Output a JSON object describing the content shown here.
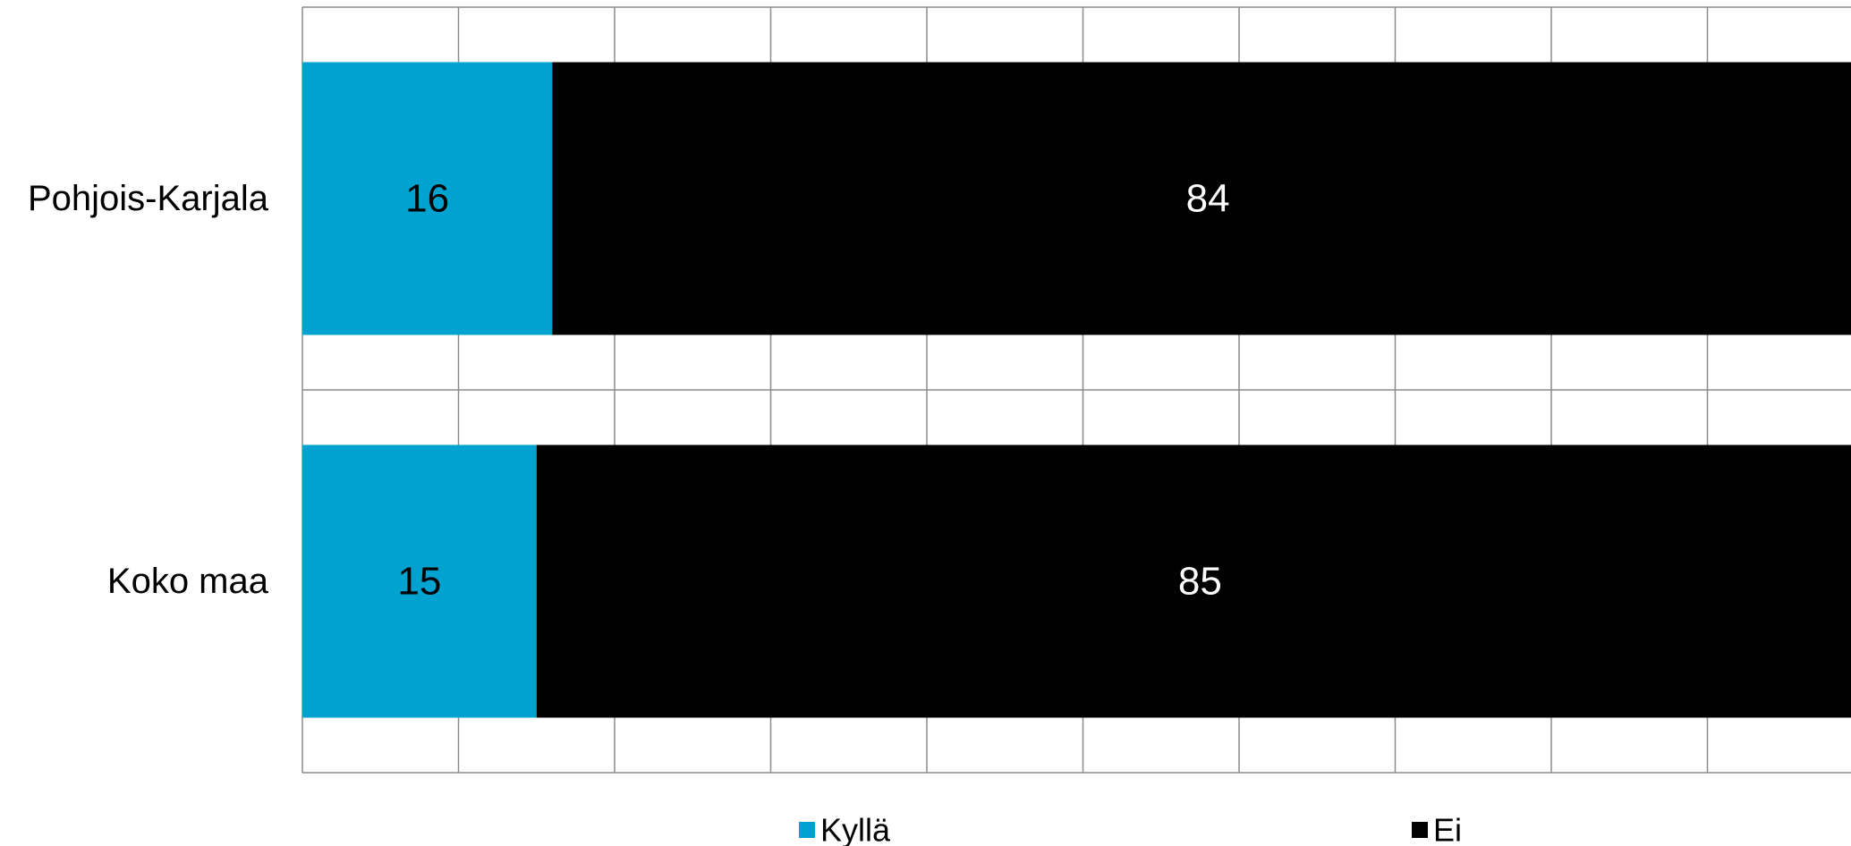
{
  "chart_data": {
    "type": "bar",
    "orientation": "horizontal",
    "stacked": true,
    "title": "",
    "xlabel": "",
    "ylabel": "",
    "xlim": [
      0,
      100
    ],
    "grid": true,
    "legend_position": "bottom",
    "categories": [
      "Pohjois-Karjala",
      "Koko maa"
    ],
    "series": [
      {
        "name": "Kyllä",
        "values": [
          16,
          15
        ],
        "color": "#00a3d0"
      },
      {
        "name": "Ei",
        "values": [
          84,
          85
        ],
        "color": "#000000"
      }
    ]
  }
}
